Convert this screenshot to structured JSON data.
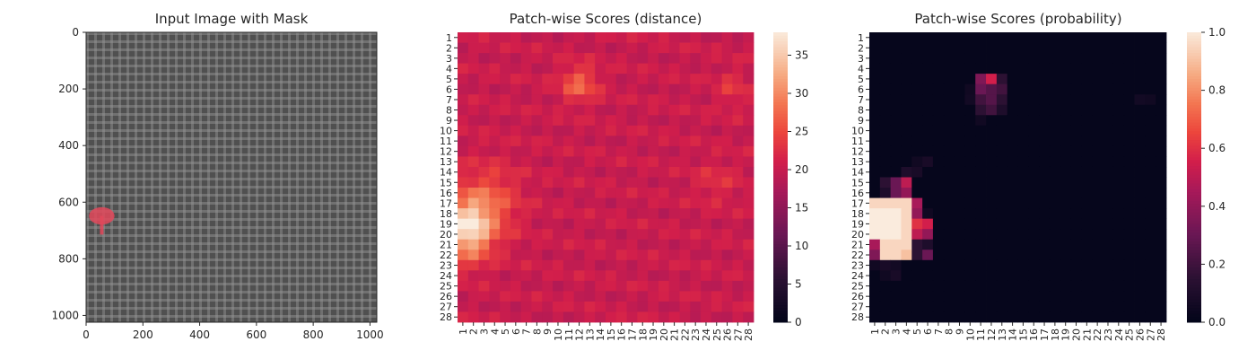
{
  "chart_data": [
    {
      "type": "image",
      "title": "Input Image with Mask",
      "x_ticks": [
        0,
        200,
        400,
        600,
        800,
        1000
      ],
      "y_ticks": [
        0,
        200,
        400,
        600,
        800,
        1000
      ],
      "xlim": [
        0,
        1024
      ],
      "ylim": [
        1024,
        0
      ],
      "mask_color": "#e2485a",
      "mask_region": {
        "x_range": [
          10,
          100
        ],
        "y_range": [
          610,
          720
        ]
      }
    },
    {
      "type": "heatmap",
      "title": "Patch-wise Scores (distance)",
      "rows": 28,
      "cols": 28,
      "tick_labels": [
        "1",
        "2",
        "3",
        "4",
        "5",
        "6",
        "7",
        "8",
        "9",
        "10",
        "11",
        "12",
        "13",
        "14",
        "15",
        "16",
        "17",
        "18",
        "19",
        "20",
        "21",
        "22",
        "23",
        "24",
        "25",
        "26",
        "27",
        "28"
      ],
      "colorbar": {
        "min": 0,
        "max": 38,
        "ticks": [
          0,
          5,
          10,
          15,
          20,
          25,
          30,
          35
        ]
      },
      "base_value": 20,
      "blobs": [
        {
          "row": 19.5,
          "col": 1.5,
          "sr": 2.0,
          "sc": 1.5,
          "amp": 16
        },
        {
          "row": 17.0,
          "col": 3.5,
          "sr": 2.5,
          "sc": 2.0,
          "amp": 6
        },
        {
          "row": 5.5,
          "col": 12,
          "sr": 1.2,
          "sc": 1.2,
          "amp": 7
        },
        {
          "row": 6,
          "col": 26.5,
          "sr": 1.3,
          "sc": 1.0,
          "amp": 3
        },
        {
          "row": 15,
          "col": 25,
          "sr": 1.5,
          "sc": 1.5,
          "amp": 2.5
        }
      ]
    },
    {
      "type": "heatmap",
      "title": "Patch-wise Scores (probability)",
      "rows": 28,
      "cols": 28,
      "tick_labels": [
        "1",
        "2",
        "3",
        "4",
        "5",
        "6",
        "7",
        "8",
        "9",
        "10",
        "11",
        "12",
        "13",
        "14",
        "15",
        "16",
        "17",
        "18",
        "19",
        "20",
        "21",
        "22",
        "23",
        "24",
        "25",
        "26",
        "27",
        "28"
      ],
      "colorbar": {
        "min": 0,
        "max": 1,
        "ticks": [
          0.0,
          0.2,
          0.4,
          0.6,
          0.8,
          1.0
        ]
      },
      "cells": [
        {
          "r": 5,
          "c": 11,
          "v": 0.35
        },
        {
          "r": 5,
          "c": 12,
          "v": 0.55
        },
        {
          "r": 5,
          "c": 13,
          "v": 0.15
        },
        {
          "r": 6,
          "c": 11,
          "v": 0.3
        },
        {
          "r": 6,
          "c": 12,
          "v": 0.25
        },
        {
          "r": 6,
          "c": 13,
          "v": 0.2
        },
        {
          "r": 7,
          "c": 11,
          "v": 0.2
        },
        {
          "r": 7,
          "c": 12,
          "v": 0.25
        },
        {
          "r": 7,
          "c": 13,
          "v": 0.15
        },
        {
          "r": 8,
          "c": 11,
          "v": 0.15
        },
        {
          "r": 8,
          "c": 12,
          "v": 0.2
        },
        {
          "r": 8,
          "c": 13,
          "v": 0.1
        },
        {
          "r": 9,
          "c": 11,
          "v": 0.05
        },
        {
          "r": 6,
          "c": 10,
          "v": 0.05
        },
        {
          "r": 7,
          "c": 10,
          "v": 0.06
        },
        {
          "r": 13,
          "c": 5,
          "v": 0.05
        },
        {
          "r": 13,
          "c": 6,
          "v": 0.08
        },
        {
          "r": 14,
          "c": 4,
          "v": 0.1
        },
        {
          "r": 14,
          "c": 5,
          "v": 0.08
        },
        {
          "r": 15,
          "c": 2,
          "v": 0.15
        },
        {
          "r": 15,
          "c": 3,
          "v": 0.3
        },
        {
          "r": 15,
          "c": 4,
          "v": 0.5
        },
        {
          "r": 16,
          "c": 2,
          "v": 0.1
        },
        {
          "r": 16,
          "c": 3,
          "v": 0.3
        },
        {
          "r": 16,
          "c": 4,
          "v": 0.4
        },
        {
          "r": 17,
          "c": 1,
          "v": 0.95
        },
        {
          "r": 17,
          "c": 2,
          "v": 0.95
        },
        {
          "r": 17,
          "c": 3,
          "v": 0.95
        },
        {
          "r": 17,
          "c": 4,
          "v": 0.95
        },
        {
          "r": 17,
          "c": 5,
          "v": 0.45
        },
        {
          "r": 18,
          "c": 1,
          "v": 1.0
        },
        {
          "r": 18,
          "c": 2,
          "v": 1.0
        },
        {
          "r": 18,
          "c": 3,
          "v": 1.0
        },
        {
          "r": 18,
          "c": 4,
          "v": 0.95
        },
        {
          "r": 18,
          "c": 5,
          "v": 0.4
        },
        {
          "r": 18,
          "c": 6,
          "v": 0.05
        },
        {
          "r": 19,
          "c": 1,
          "v": 1.0
        },
        {
          "r": 19,
          "c": 2,
          "v": 1.0
        },
        {
          "r": 19,
          "c": 3,
          "v": 1.0
        },
        {
          "r": 19,
          "c": 4,
          "v": 0.95
        },
        {
          "r": 19,
          "c": 5,
          "v": 0.6
        },
        {
          "r": 19,
          "c": 6,
          "v": 0.55
        },
        {
          "r": 20,
          "c": 1,
          "v": 1.0
        },
        {
          "r": 20,
          "c": 2,
          "v": 1.0
        },
        {
          "r": 20,
          "c": 3,
          "v": 1.0
        },
        {
          "r": 20,
          "c": 4,
          "v": 0.95
        },
        {
          "r": 20,
          "c": 5,
          "v": 0.5
        },
        {
          "r": 20,
          "c": 6,
          "v": 0.4
        },
        {
          "r": 21,
          "c": 1,
          "v": 0.45
        },
        {
          "r": 21,
          "c": 2,
          "v": 0.95
        },
        {
          "r": 21,
          "c": 3,
          "v": 0.95
        },
        {
          "r": 21,
          "c": 4,
          "v": 0.95
        },
        {
          "r": 21,
          "c": 5,
          "v": 0.15
        },
        {
          "r": 21,
          "c": 6,
          "v": 0.1
        },
        {
          "r": 22,
          "c": 1,
          "v": 0.35
        },
        {
          "r": 22,
          "c": 2,
          "v": 0.95
        },
        {
          "r": 22,
          "c": 3,
          "v": 0.95
        },
        {
          "r": 22,
          "c": 4,
          "v": 0.9
        },
        {
          "r": 22,
          "c": 5,
          "v": 0.15
        },
        {
          "r": 22,
          "c": 6,
          "v": 0.3
        },
        {
          "r": 23,
          "c": 1,
          "v": 0.05
        },
        {
          "r": 23,
          "c": 2,
          "v": 0.08
        },
        {
          "r": 23,
          "c": 3,
          "v": 0.06
        },
        {
          "r": 24,
          "c": 2,
          "v": 0.05
        },
        {
          "r": 24,
          "c": 3,
          "v": 0.08
        },
        {
          "r": 7,
          "c": 26,
          "v": 0.06
        },
        {
          "r": 7,
          "c": 27,
          "v": 0.05
        }
      ]
    }
  ]
}
